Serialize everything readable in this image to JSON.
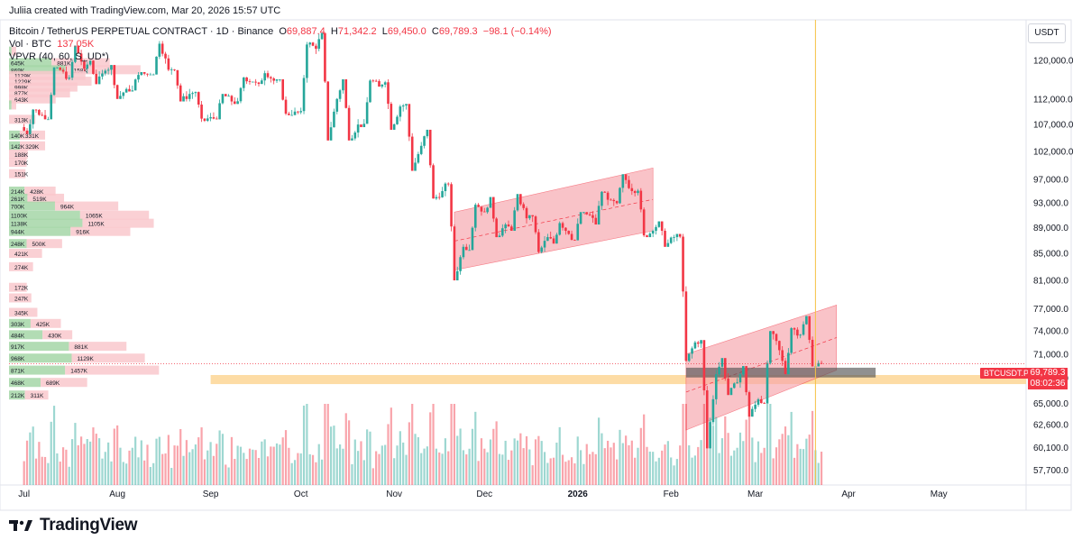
{
  "header": {
    "credit": "Juliia created with TradingView.com, Mar 20, 2026 15:57 UTC",
    "symbol": "Bitcoin / TetherUS PERPETUAL CONTRACT · 1D · Binance",
    "o_label": "O",
    "o_value": "69,887.4",
    "h_label": "H",
    "h_value": "71,342.2",
    "l_label": "L",
    "l_value": "69,450.0",
    "c_label": "C",
    "c_value": "69,789.3",
    "change": "−98.1 (−0.14%)",
    "vol_label": "Vol · BTC",
    "vol_value": "137.05K",
    "vpvr_label": "VPVR (40, 60, S_UD*)"
  },
  "currency": "USDT",
  "price_label": {
    "ticker": "BTCUSDT.P",
    "price": "69,789.3",
    "countdown": "08:02:36"
  },
  "brand": "TradingView",
  "colors": {
    "up": "#26a69a",
    "down": "#f23645",
    "channel": "#f7a4ac",
    "zone": "#fcd38e",
    "cursor": "#f5c242",
    "vp_up": "#a5d6a7",
    "vp_down": "#f9c8cc"
  },
  "chart_data": {
    "type": "candlestick",
    "symbol": "BTCUSDT.P",
    "timeframe": "1D",
    "y_ticks": [
      57700,
      60100,
      62600,
      65000,
      68000,
      71000,
      74000,
      77000,
      81000,
      85000,
      89000,
      93000,
      97000,
      102000,
      107000,
      112000,
      120000
    ],
    "y_log": true,
    "x_ticks": [
      "Jul",
      "Aug",
      "Sep",
      "Oct",
      "Nov",
      "Dec",
      "2026",
      "Feb",
      "Mar",
      "Apr",
      "May"
    ],
    "ohlc_weekly": [
      {
        "date": "2025-07-01",
        "o": 106500,
        "h": 110000,
        "l": 105200,
        "c": 108800
      },
      {
        "date": "2025-07-08",
        "o": 108800,
        "h": 118500,
        "l": 108000,
        "c": 117600
      },
      {
        "date": "2025-07-15",
        "o": 117600,
        "h": 123200,
        "l": 115800,
        "c": 118200
      },
      {
        "date": "2025-07-22",
        "o": 118200,
        "h": 120000,
        "l": 115000,
        "c": 117800
      },
      {
        "date": "2025-07-29",
        "o": 117800,
        "h": 119000,
        "l": 112000,
        "c": 114000
      },
      {
        "date": "2025-08-05",
        "o": 114000,
        "h": 117500,
        "l": 113500,
        "c": 117000
      },
      {
        "date": "2025-08-12",
        "o": 117000,
        "h": 124200,
        "l": 117000,
        "c": 118000
      },
      {
        "date": "2025-08-19",
        "o": 118000,
        "h": 118500,
        "l": 111500,
        "c": 113000
      },
      {
        "date": "2025-08-26",
        "o": 113000,
        "h": 113500,
        "l": 107500,
        "c": 108400
      },
      {
        "date": "2025-09-02",
        "o": 108400,
        "h": 113000,
        "l": 108000,
        "c": 111500
      },
      {
        "date": "2025-09-09",
        "o": 111500,
        "h": 116500,
        "l": 111000,
        "c": 115500
      },
      {
        "date": "2025-09-16",
        "o": 115500,
        "h": 117800,
        "l": 114500,
        "c": 115700
      },
      {
        "date": "2025-09-23",
        "o": 115700,
        "h": 116000,
        "l": 108800,
        "c": 109500
      },
      {
        "date": "2025-09-30",
        "o": 109500,
        "h": 124000,
        "l": 109000,
        "c": 122500
      },
      {
        "date": "2025-10-07",
        "o": 122500,
        "h": 126000,
        "l": 104000,
        "c": 112000
      },
      {
        "date": "2025-10-14",
        "o": 112000,
        "h": 116000,
        "l": 104000,
        "c": 107000
      },
      {
        "date": "2025-10-21",
        "o": 107000,
        "h": 116000,
        "l": 106500,
        "c": 114500
      },
      {
        "date": "2025-10-28",
        "o": 114500,
        "h": 116000,
        "l": 106000,
        "c": 110500
      },
      {
        "date": "2025-11-04",
        "o": 110500,
        "h": 111000,
        "l": 98500,
        "c": 103000
      },
      {
        "date": "2025-11-11",
        "o": 103000,
        "h": 106000,
        "l": 93500,
        "c": 95000
      },
      {
        "date": "2025-11-18",
        "o": 95000,
        "h": 96500,
        "l": 81000,
        "c": 86000
      },
      {
        "date": "2025-11-25",
        "o": 86000,
        "h": 93000,
        "l": 85500,
        "c": 91500
      },
      {
        "date": "2025-12-02",
        "o": 91500,
        "h": 94000,
        "l": 87500,
        "c": 89500
      },
      {
        "date": "2025-12-09",
        "o": 89500,
        "h": 94500,
        "l": 88500,
        "c": 90500
      },
      {
        "date": "2025-12-16",
        "o": 90500,
        "h": 91000,
        "l": 85000,
        "c": 87500
      },
      {
        "date": "2025-12-23",
        "o": 87500,
        "h": 90000,
        "l": 86500,
        "c": 88000
      },
      {
        "date": "2025-12-30",
        "o": 88000,
        "h": 91500,
        "l": 87000,
        "c": 91000
      },
      {
        "date": "2026-01-06",
        "o": 91000,
        "h": 95000,
        "l": 89500,
        "c": 93500
      },
      {
        "date": "2026-01-13",
        "o": 93500,
        "h": 97900,
        "l": 92500,
        "c": 95000
      },
      {
        "date": "2026-01-20",
        "o": 95000,
        "h": 95500,
        "l": 87500,
        "c": 88500
      },
      {
        "date": "2026-01-27",
        "o": 88500,
        "h": 90000,
        "l": 86000,
        "c": 87500
      },
      {
        "date": "2026-02-03",
        "o": 87500,
        "h": 88000,
        "l": 70000,
        "c": 72500
      },
      {
        "date": "2026-02-10",
        "o": 72500,
        "h": 72800,
        "l": 60000,
        "c": 68500
      },
      {
        "date": "2026-02-17",
        "o": 68500,
        "h": 70500,
        "l": 66000,
        "c": 67500
      },
      {
        "date": "2026-02-24",
        "o": 67500,
        "h": 69500,
        "l": 63500,
        "c": 65500
      },
      {
        "date": "2026-03-03",
        "o": 65500,
        "h": 74000,
        "l": 65000,
        "c": 71500
      },
      {
        "date": "2026-03-10",
        "o": 71500,
        "h": 74500,
        "l": 68500,
        "c": 73500
      },
      {
        "date": "2026-03-17",
        "o": 73500,
        "h": 76000,
        "l": 69450,
        "c": 69789.3
      }
    ],
    "last_price": 69789.3,
    "volume_profile": [
      {
        "price": 122000,
        "up": "",
        "down": ""
      },
      {
        "price": 119500,
        "up": "645K",
        "down": "881K"
      },
      {
        "price": 118000,
        "up": "869K",
        "down": "1158K"
      },
      {
        "price": 116800,
        "up": "",
        "down": "1129K"
      },
      {
        "price": 115600,
        "up": "",
        "down": "1229K"
      },
      {
        "price": 114400,
        "up": "",
        "down": "998K"
      },
      {
        "price": 113200,
        "up": "",
        "down": "877K"
      },
      {
        "price": 112000,
        "up": "",
        "down": "643K"
      },
      {
        "price": 110800,
        "up": "",
        "down": ""
      },
      {
        "price": 108000,
        "up": "",
        "down": "313K"
      },
      {
        "price": 105000,
        "up": "140K",
        "down": "331K"
      },
      {
        "price": 103000,
        "up": "142K",
        "down": "329K"
      },
      {
        "price": 101500,
        "up": "",
        "down": "188K"
      },
      {
        "price": 100000,
        "up": "",
        "down": "170K"
      },
      {
        "price": 98000,
        "up": "",
        "down": "151K"
      },
      {
        "price": 95000,
        "up": "214K",
        "down": "428K"
      },
      {
        "price": 93800,
        "up": "261K",
        "down": "519K"
      },
      {
        "price": 92500,
        "up": "700K",
        "down": "964K"
      },
      {
        "price": 91000,
        "up": "1100K",
        "down": "1065K"
      },
      {
        "price": 89700,
        "up": "1138K",
        "down": "1105K"
      },
      {
        "price": 88400,
        "up": "944K",
        "down": "916K"
      },
      {
        "price": 86500,
        "up": "248K",
        "down": "500K"
      },
      {
        "price": 85000,
        "up": "",
        "down": "421K"
      },
      {
        "price": 83000,
        "up": "",
        "down": "274K"
      },
      {
        "price": 80000,
        "up": "",
        "down": "172K"
      },
      {
        "price": 78500,
        "up": "",
        "down": "247K"
      },
      {
        "price": 76500,
        "up": "",
        "down": "345K"
      },
      {
        "price": 75000,
        "up": "303K",
        "down": "425K"
      },
      {
        "price": 73500,
        "up": "484K",
        "down": "430K"
      },
      {
        "price": 72000,
        "up": "917K",
        "down": "881K"
      },
      {
        "price": 70500,
        "up": "968K",
        "down": "1129K"
      },
      {
        "price": 69000,
        "up": "871K",
        "down": "1457K"
      },
      {
        "price": 67500,
        "up": "468K",
        "down": "689K"
      },
      {
        "price": 66000,
        "up": "212K",
        "down": "311K"
      }
    ],
    "drawings": [
      {
        "kind": "rising channel",
        "from": "2025-11-21",
        "to": "2026-01-26",
        "lower": [
          82500,
          88500
        ],
        "upper": [
          91500,
          99000
        ]
      },
      {
        "kind": "rising channel",
        "from": "2026-02-06",
        "to": "2026-03-28",
        "lower": [
          62000,
          69000
        ],
        "upper": [
          71000,
          77500
        ]
      },
      {
        "kind": "horizontal zone",
        "from_price": 67300,
        "to_price": 68400,
        "color": "orange"
      },
      {
        "kind": "box",
        "from": "2026-02-06",
        "to": "2026-04-10",
        "from_price": 68100,
        "to_price": 69300,
        "color": "gray"
      }
    ]
  }
}
